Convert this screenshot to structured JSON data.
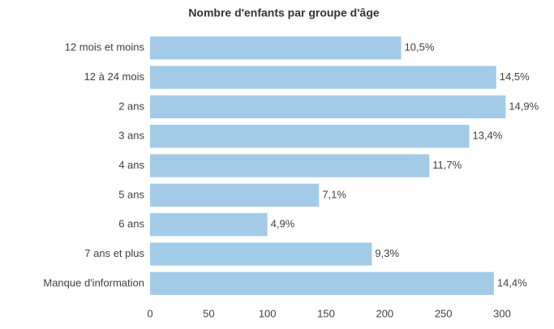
{
  "chart_data": {
    "type": "barh",
    "title": "Nombre d'enfants par groupe d'âge",
    "categories": [
      "12 mois et moins",
      "12 à 24 mois",
      "2 ans",
      "3 ans",
      "4 ans",
      "5 ans",
      "6 ans",
      "7 ans et plus",
      "Manque d'information"
    ],
    "values": [
      214,
      295,
      303,
      272,
      238,
      144,
      100,
      189,
      293
    ],
    "percentages": [
      10.5,
      14.5,
      14.9,
      13.4,
      11.7,
      7.1,
      4.9,
      9.3,
      14.4
    ],
    "percentage_labels": [
      "10,5%",
      "14,5%",
      "14,9%",
      "13,4%",
      "11,7%",
      "7,1%",
      "4,9%",
      "9,3%",
      "14,4%"
    ],
    "color": "#a3cbe8",
    "xlim": [
      0,
      300
    ],
    "xticks": [
      0,
      50,
      100,
      150,
      200,
      250,
      300
    ],
    "grid": false
  }
}
